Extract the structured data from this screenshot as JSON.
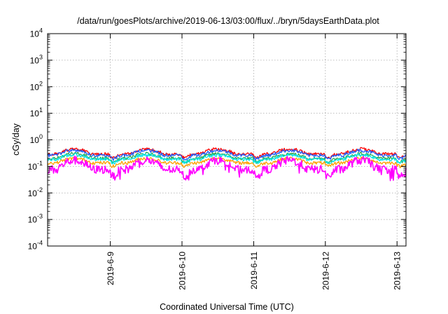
{
  "chart_data": {
    "type": "line",
    "title": "/data/run/goesPlots/archive/2019-06-13/03:00/flux/../bryn/5daysEarthData.plot",
    "xlabel": "Coordinated Universal Time (UTC)",
    "ylabel": "cGy/day",
    "y_scale": "log",
    "ylim_exponent": [
      -4,
      4
    ],
    "y_tick_base": "10",
    "y_tick_exponents": [
      "-4",
      "-3",
      "-2",
      "-1",
      "0",
      "1",
      "2",
      "3",
      "4"
    ],
    "xlim": [
      "2019-06-08 03:00",
      "2019-06-13 03:00"
    ],
    "x_tick_labels": [
      "2019-6-9",
      "2019-6-10",
      "2019-6-11",
      "2019-6-12",
      "2019-6-13"
    ],
    "x_tick_dates": [
      "2019-06-09 00:00",
      "2019-06-10 00:00",
      "2019-06-11 00:00",
      "2019-06-12 00:00",
      "2019-06-13 00:00"
    ],
    "grid": true,
    "series_colors": [
      "#ff0000",
      "#1f5fff",
      "#2fa84f",
      "#00e5e5",
      "#ff9f00",
      "#ff00ff"
    ],
    "series_levels": [
      {
        "color": "#ff0000",
        "day_peak": 0.45,
        "night_low": 0.23
      },
      {
        "color": "#1f5fff",
        "day_peak": 0.4,
        "night_low": 0.21
      },
      {
        "color": "#2fa84f",
        "day_peak": 0.3,
        "night_low": 0.16
      },
      {
        "color": "#00e5e5",
        "day_peak": 0.27,
        "night_low": 0.15
      },
      {
        "color": "#ff9f00",
        "day_peak": 0.2,
        "night_low": 0.11
      },
      {
        "color": "#ff00ff",
        "day_peak": 0.17,
        "night_low": 0.05
      }
    ]
  }
}
